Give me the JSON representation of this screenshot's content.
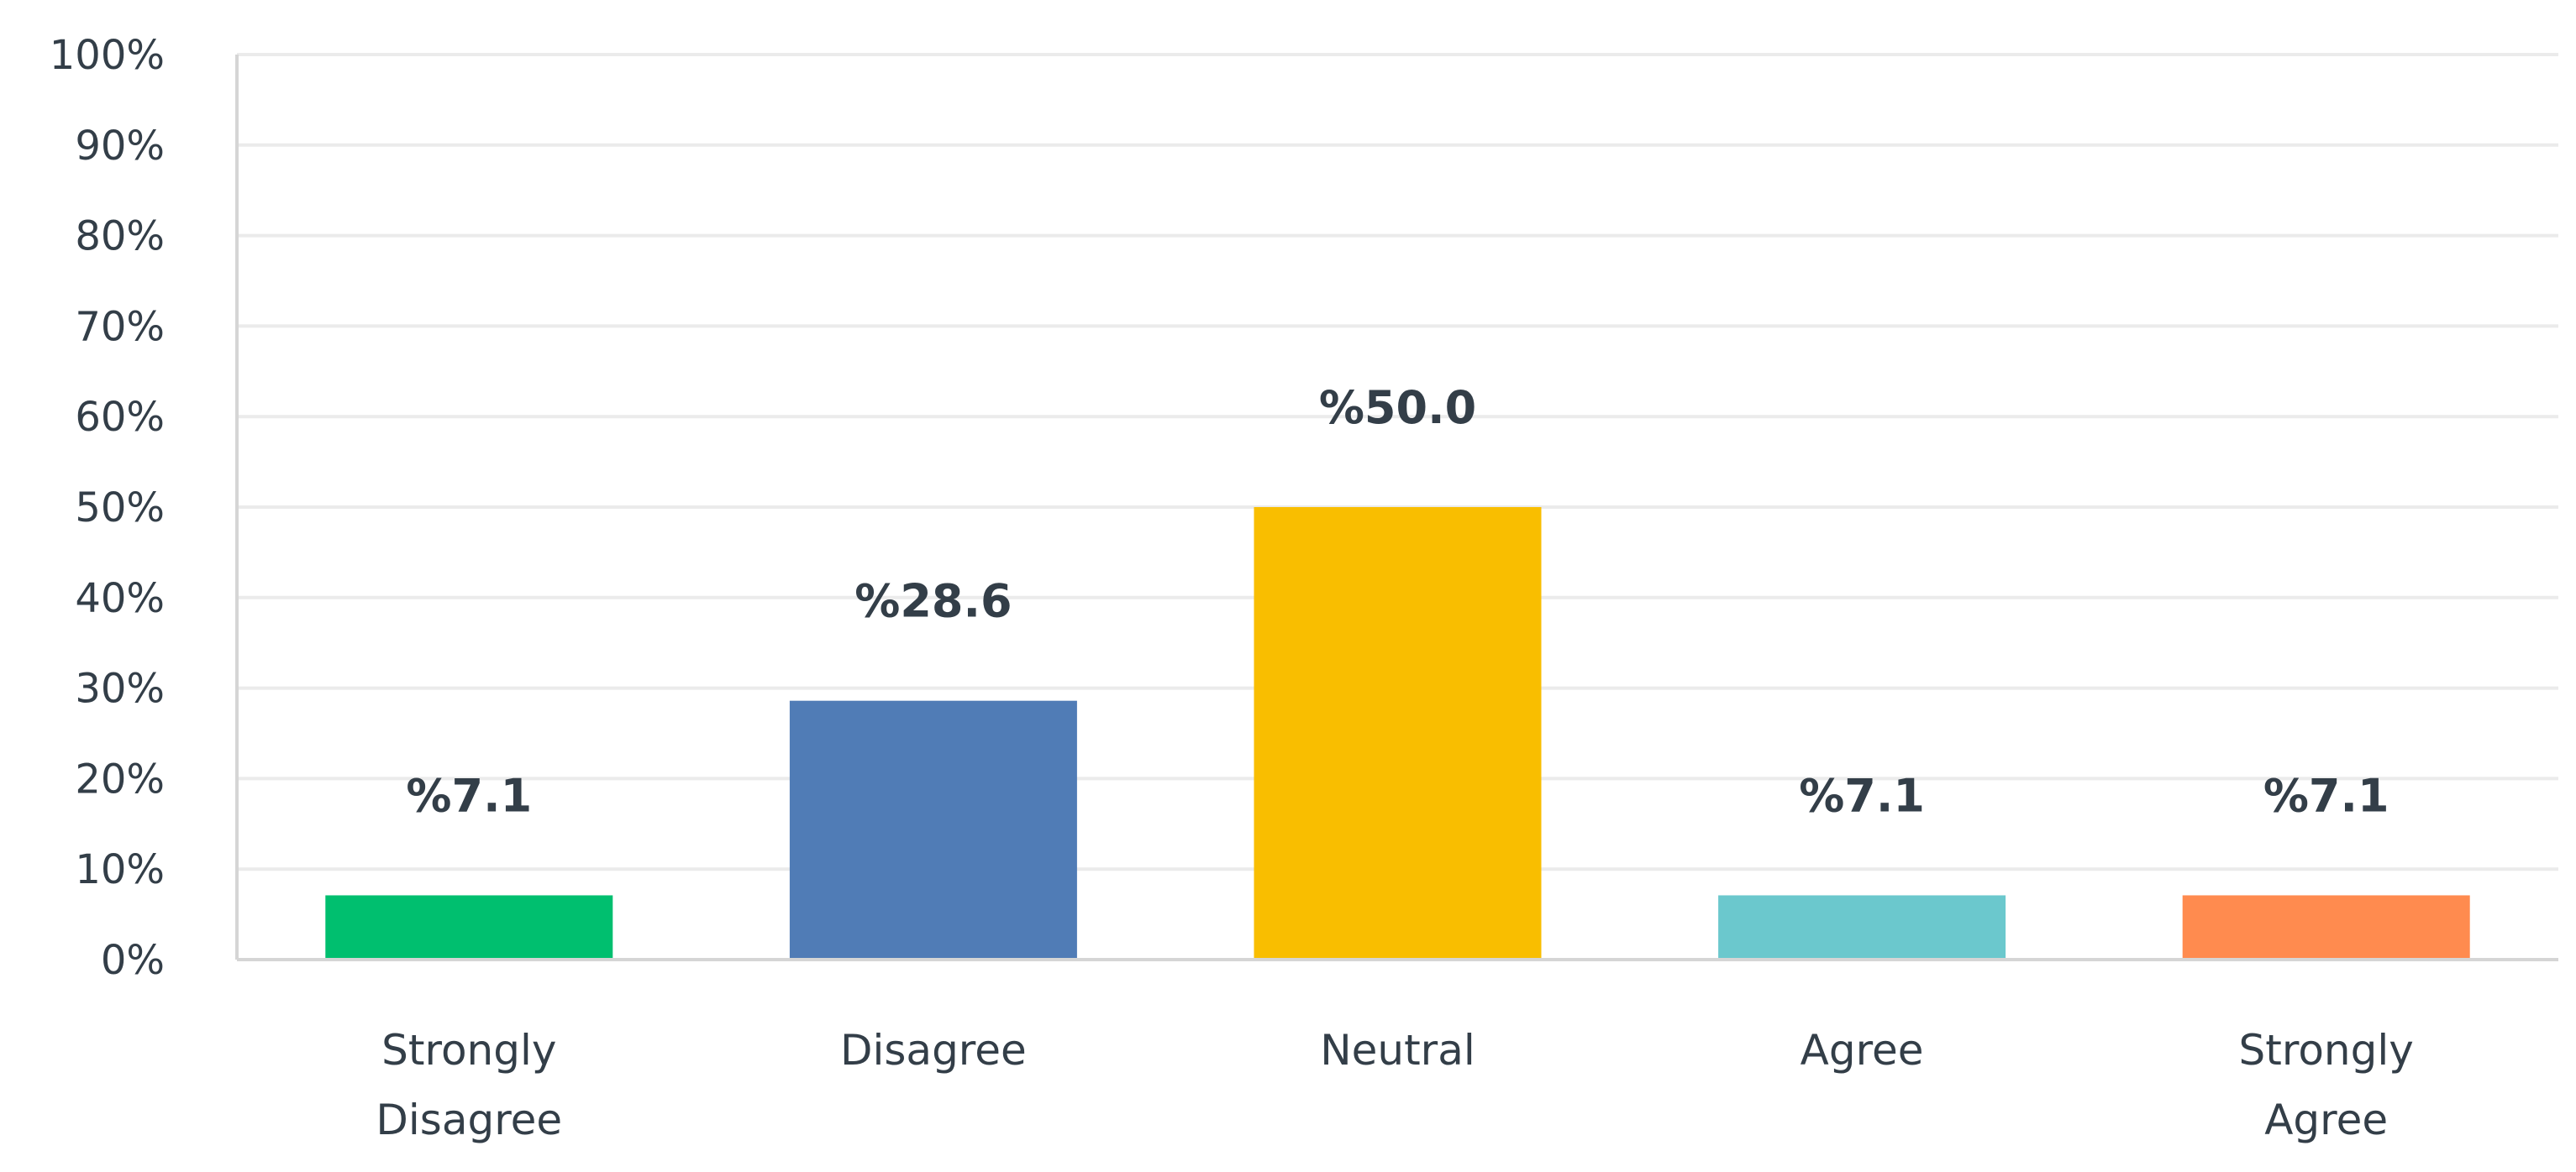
{
  "chart_data": {
    "type": "bar",
    "categories": [
      "Strongly Disagree",
      "Disagree",
      "Neutral",
      "Agree",
      "Strongly Agree"
    ],
    "category_lines": [
      [
        "Strongly",
        "Disagree"
      ],
      [
        "Disagree"
      ],
      [
        "Neutral"
      ],
      [
        "Agree"
      ],
      [
        "Strongly",
        "Agree"
      ]
    ],
    "values": [
      7.1,
      28.6,
      50.0,
      7.1,
      7.1
    ],
    "data_labels": [
      "%7.1",
      "%28.6",
      "%50.0",
      "%7.1",
      "%7.1"
    ],
    "colors": [
      "#00bf6f",
      "#507cb6",
      "#f9be00",
      "#6bc8cd",
      "#ff8b4f"
    ],
    "ylim": [
      0,
      100
    ],
    "yticks": [
      0,
      10,
      20,
      30,
      40,
      50,
      60,
      70,
      80,
      90,
      100
    ],
    "ytick_labels": [
      "0%",
      "10%",
      "20%",
      "30%",
      "40%",
      "50%",
      "60%",
      "70%",
      "80%",
      "90%",
      "100%"
    ],
    "grid": true,
    "title": "",
    "xlabel": "",
    "ylabel": ""
  }
}
